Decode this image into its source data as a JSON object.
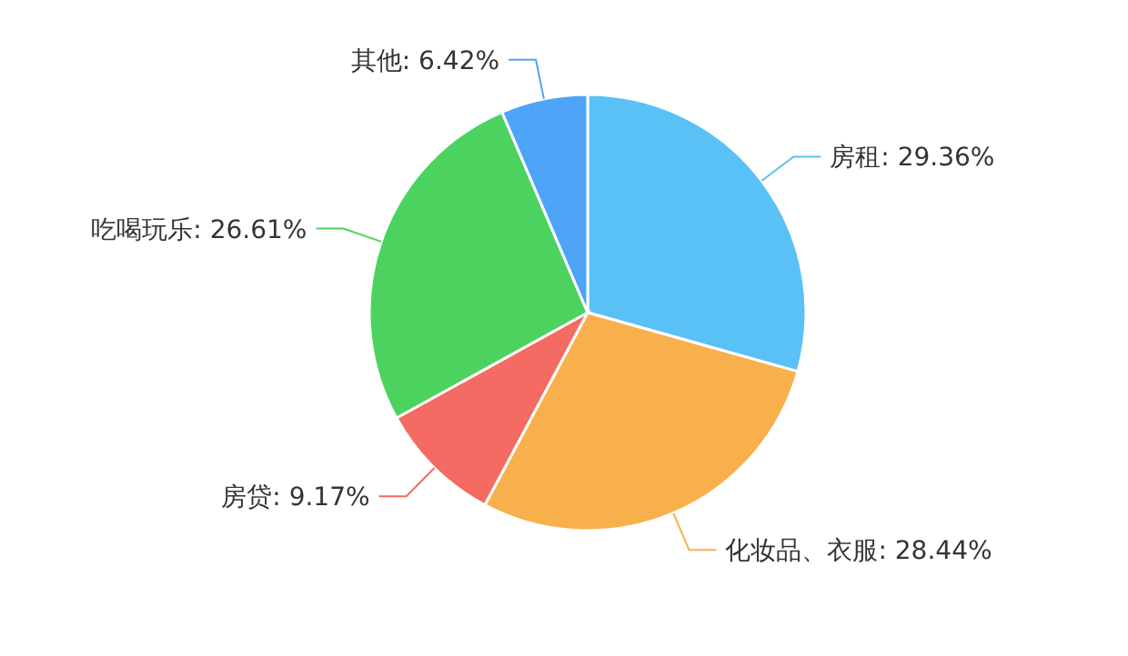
{
  "chart_data": {
    "type": "pie",
    "categories": [
      "房租",
      "化妆品、衣服",
      "房贷",
      "吃喝玩乐",
      "其他"
    ],
    "values": [
      29.36,
      28.44,
      9.17,
      26.61,
      6.42
    ],
    "colors": [
      "#5ac1f7",
      "#f8b04c",
      "#f36b62",
      "#4cd35f",
      "#4ea4f6"
    ],
    "value_labels": [
      "29.36%",
      "28.44%",
      "9.17%",
      "26.61%",
      "6.42%"
    ]
  }
}
